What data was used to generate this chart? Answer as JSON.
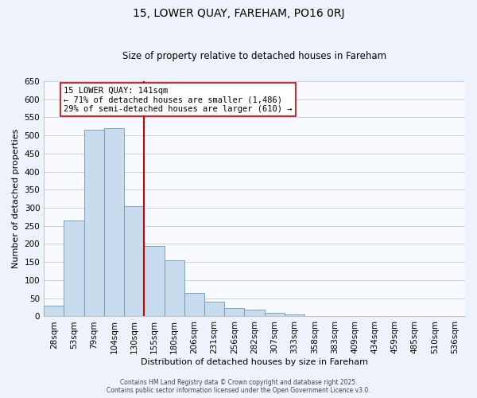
{
  "title": "15, LOWER QUAY, FAREHAM, PO16 0RJ",
  "subtitle": "Size of property relative to detached houses in Fareham",
  "xlabel": "Distribution of detached houses by size in Fareham",
  "ylabel": "Number of detached properties",
  "bar_labels": [
    "28sqm",
    "53sqm",
    "79sqm",
    "104sqm",
    "130sqm",
    "155sqm",
    "180sqm",
    "206sqm",
    "231sqm",
    "256sqm",
    "282sqm",
    "307sqm",
    "333sqm",
    "358sqm",
    "383sqm",
    "409sqm",
    "434sqm",
    "459sqm",
    "485sqm",
    "510sqm",
    "536sqm"
  ],
  "bar_values": [
    30,
    265,
    515,
    520,
    305,
    195,
    155,
    65,
    40,
    22,
    18,
    10,
    5,
    2,
    0,
    1,
    0,
    0,
    1,
    0,
    1
  ],
  "bar_color": "#c8dcee",
  "bar_edge_color": "#6699bb",
  "property_line_x": 4.5,
  "property_line_label": "15 LOWER QUAY: 141sqm",
  "annotation_line1": "← 71% of detached houses are smaller (1,486)",
  "annotation_line2": "29% of semi-detached houses are larger (610) →",
  "vline_color": "#cc0000",
  "annotation_box_facecolor": "#ffffff",
  "annotation_box_edgecolor": "#cc0000",
  "ylim": [
    0,
    650
  ],
  "yticks": [
    0,
    50,
    100,
    150,
    200,
    250,
    300,
    350,
    400,
    450,
    500,
    550,
    600,
    650
  ],
  "footer_line1": "Contains HM Land Registry data © Crown copyright and database right 2025.",
  "footer_line2": "Contains public sector information licensed under the Open Government Licence v3.0.",
  "bg_color": "#eef2fa",
  "plot_bg_color": "#f8faff",
  "grid_color": "#c8d0e8",
  "title_fontsize": 10,
  "subtitle_fontsize": 8.5,
  "xlabel_fontsize": 8,
  "ylabel_fontsize": 8,
  "tick_fontsize": 7.5,
  "footer_fontsize": 5.5,
  "ann_fontsize": 7.5
}
